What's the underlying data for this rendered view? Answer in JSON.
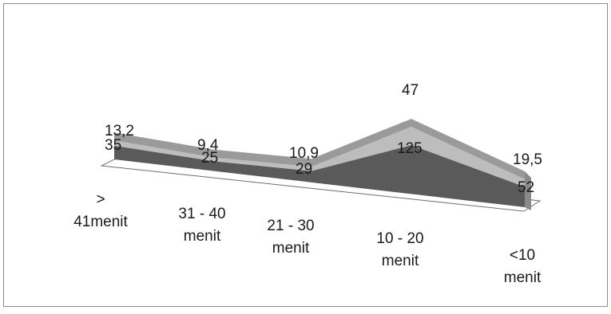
{
  "chart_data": {
    "type": "area",
    "view": "3d-stacked",
    "categories": [
      ">\n41menit",
      "31 - 40\nmenit",
      "21 - 30\nmenit",
      "10 - 20\nmenit",
      "<10\nmenit"
    ],
    "series": [
      {
        "values": [
          35,
          25,
          29,
          125,
          52
        ],
        "color": "#5a5a5a"
      },
      {
        "values": [
          13.2,
          9.4,
          10.9,
          47,
          19.5
        ],
        "color": "#bdbdbd"
      }
    ],
    "data_labels": {
      "lower": [
        "35",
        "25",
        "29",
        "125",
        "52"
      ],
      "upper": [
        "13,2",
        "9,4",
        "10,9",
        "47",
        "19,5"
      ]
    },
    "title": "",
    "xlabel": "",
    "ylabel": "",
    "legend": "none",
    "grid": false,
    "colors": {
      "border": "#8c8c8c",
      "floor": "#ffffff",
      "side": "#8a8a8a",
      "top": "#9a9a9a"
    }
  }
}
